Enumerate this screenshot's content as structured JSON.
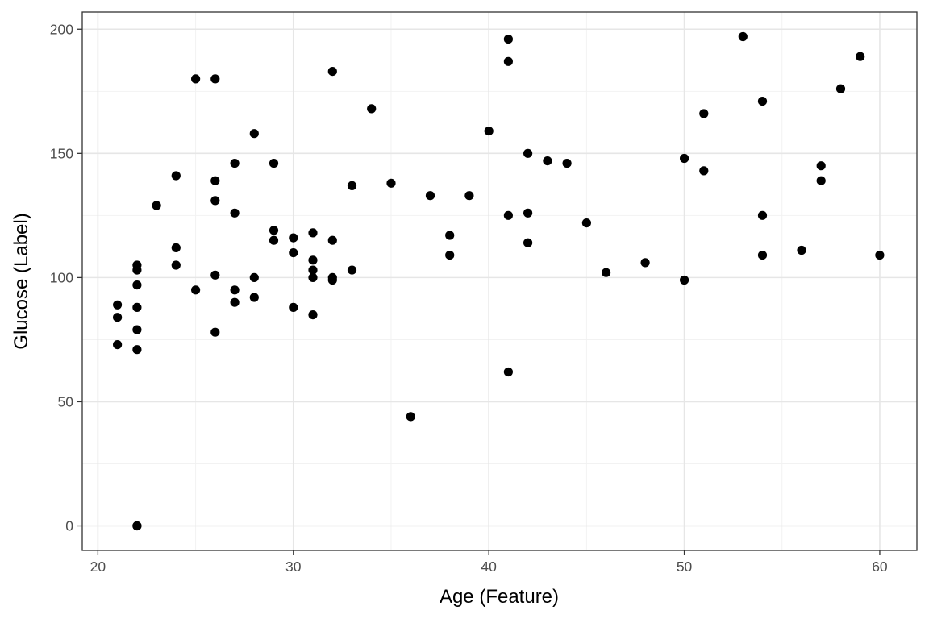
{
  "chart_data": {
    "type": "scatter",
    "title": "",
    "xlabel": "Age (Feature)",
    "ylabel": "Glucose (Label)",
    "xlim": [
      19.2,
      61.9
    ],
    "ylim": [
      -9.9,
      206.9
    ],
    "x_ticks": [
      20,
      30,
      40,
      50,
      60
    ],
    "x_tick_labels": [
      "20",
      "30",
      "40",
      "50",
      "60"
    ],
    "y_ticks": [
      0,
      50,
      100,
      150,
      200
    ],
    "y_tick_labels": [
      "0",
      "50",
      "100",
      "150",
      "200"
    ],
    "grid": true,
    "legend": "none",
    "point_color": "#000000",
    "series": [
      {
        "x": [
          21,
          21,
          21,
          22,
          22,
          22,
          22,
          22,
          22,
          22,
          22,
          23,
          24,
          24,
          24,
          25,
          25,
          26,
          26,
          26,
          26,
          26,
          27,
          27,
          27,
          27,
          28,
          28,
          28,
          29,
          29,
          29,
          30,
          30,
          30,
          31,
          31,
          31,
          31,
          31,
          32,
          32,
          32,
          32,
          33,
          33,
          34,
          35,
          36,
          37,
          38,
          38,
          39,
          40,
          41,
          41,
          41,
          41,
          42,
          42,
          42,
          43,
          44,
          45,
          46,
          48,
          50,
          50,
          51,
          51,
          53,
          54,
          54,
          54,
          56,
          57,
          57,
          58,
          59,
          60
        ],
        "y": [
          89,
          84,
          73,
          105,
          103,
          97,
          88,
          79,
          71,
          0,
          0,
          129,
          141,
          112,
          105,
          180,
          95,
          180,
          139,
          131,
          101,
          78,
          146,
          126,
          95,
          90,
          158,
          100,
          92,
          146,
          119,
          115,
          116,
          110,
          88,
          118,
          107,
          103,
          100,
          85,
          183,
          115,
          100,
          99,
          137,
          103,
          168,
          138,
          44,
          133,
          117,
          109,
          133,
          159,
          196,
          187,
          125,
          62,
          150,
          126,
          114,
          147,
          146,
          122,
          102,
          106,
          148,
          99,
          166,
          143,
          197,
          171,
          125,
          109,
          111,
          145,
          139,
          176,
          189,
          109
        ]
      }
    ]
  }
}
